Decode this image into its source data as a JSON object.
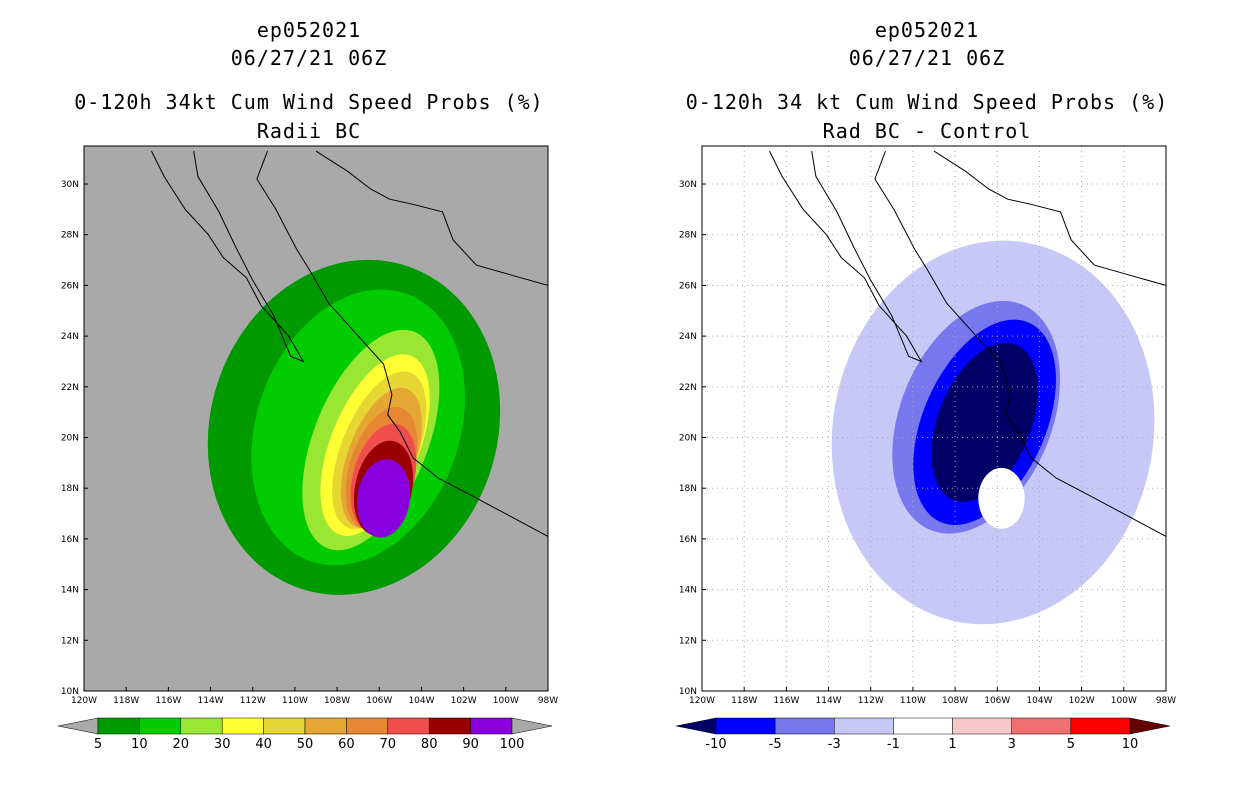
{
  "panels": [
    {
      "storm_id": "ep052021",
      "datetime": "06/27/21 06Z",
      "title": "0-120h 34kt Cum Wind Speed Probs (%)",
      "subtitle": "Radii BC",
      "background": "#a9a9a9",
      "x_ticks": [
        "120W",
        "118W",
        "116W",
        "114W",
        "112W",
        "110W",
        "108W",
        "106W",
        "104W",
        "102W",
        "100W",
        "98W"
      ],
      "y_ticks": [
        "10N",
        "12N",
        "14N",
        "16N",
        "18N",
        "20N",
        "22N",
        "24N",
        "26N",
        "28N",
        "30N"
      ],
      "colorbar": {
        "colors": [
          "#009900",
          "#00cc00",
          "#99e633",
          "#ffff33",
          "#e6d633",
          "#e6a633",
          "#e68833",
          "#f04d4d",
          "#990000",
          "#8800dd"
        ],
        "labels": [
          "5",
          "10",
          "20",
          "30",
          "40",
          "50",
          "60",
          "70",
          "80",
          "90",
          "100"
        ],
        "low_arrow": "#a9a9a9",
        "high_arrow": "#a9a9a9"
      }
    },
    {
      "storm_id": "ep052021",
      "datetime": "06/27/21 06Z",
      "title": "0-120h 34 kt Cum Wind Speed Probs (%)",
      "subtitle": "Rad BC - Control",
      "background": "#ffffff",
      "x_ticks": [
        "120W",
        "118W",
        "116W",
        "114W",
        "112W",
        "110W",
        "108W",
        "106W",
        "104W",
        "102W",
        "100W",
        "98W"
      ],
      "y_ticks": [
        "10N",
        "12N",
        "14N",
        "16N",
        "18N",
        "20N",
        "22N",
        "24N",
        "26N",
        "28N",
        "30N"
      ],
      "colorbar": {
        "colors": [
          "#0000ff",
          "#7777ee",
          "#c8c8f8",
          "#ffffff",
          "#f8c8c8",
          "#f07070",
          "#ff0000"
        ],
        "labels": [
          "-10",
          "-5",
          "-3",
          "-1",
          "1",
          "3",
          "5",
          "10"
        ],
        "low_arrow": "#000066",
        "high_arrow": "#660000"
      }
    }
  ],
  "chart_data": [
    {
      "type": "heatmap",
      "title": "0-120h 34kt Cum Wind Speed Probs (%)",
      "subtitle": "Radii BC",
      "xlim": [
        -120,
        -98
      ],
      "ylim": [
        10,
        31.5
      ],
      "levels": [
        5,
        10,
        20,
        30,
        40,
        50,
        60,
        70,
        80,
        90,
        100
      ],
      "contours": [
        {
          "level": 5,
          "color": "#009900",
          "center": [
            -107.2,
            20.4
          ],
          "rx": 6.8,
          "ry": 6.7,
          "rot": 18
        },
        {
          "level": 10,
          "color": "#00cc00",
          "center": [
            -107.0,
            20.4
          ],
          "rx": 4.8,
          "ry": 5.6,
          "rot": 20
        },
        {
          "level": 20,
          "color": "#99e633",
          "center": [
            -106.4,
            19.9
          ],
          "rx": 2.7,
          "ry": 4.6,
          "rot": 22
        },
        {
          "level": 30,
          "color": "#ffff33",
          "center": [
            -106.2,
            19.7
          ],
          "rx": 2.1,
          "ry": 3.8,
          "rot": 22
        },
        {
          "level": 40,
          "color": "#e6d633",
          "center": [
            -106.0,
            19.5
          ],
          "rx": 1.8,
          "ry": 3.3,
          "rot": 22
        },
        {
          "level": 50,
          "color": "#e6a633",
          "center": [
            -105.9,
            19.2
          ],
          "rx": 1.6,
          "ry": 2.9,
          "rot": 20
        },
        {
          "level": 60,
          "color": "#e68833",
          "center": [
            -105.9,
            18.8
          ],
          "rx": 1.5,
          "ry": 2.5,
          "rot": 18
        },
        {
          "level": 70,
          "color": "#f04d4d",
          "center": [
            -105.8,
            18.4
          ],
          "rx": 1.45,
          "ry": 2.2,
          "rot": 15
        },
        {
          "level": 80,
          "color": "#990000",
          "center": [
            -105.8,
            18.0
          ],
          "rx": 1.35,
          "ry": 1.9,
          "rot": 12
        },
        {
          "level": 90,
          "color": "#8800dd",
          "center": [
            -105.8,
            17.6
          ],
          "rx": 1.25,
          "ry": 1.55,
          "rot": 8
        }
      ]
    },
    {
      "type": "heatmap",
      "title": "0-120h 34 kt Cum Wind Speed Probs (%)",
      "subtitle": "Rad BC - Control",
      "xlim": [
        -120,
        -98
      ],
      "ylim": [
        10,
        31.5
      ],
      "levels": [
        -10,
        -5,
        -3,
        -1,
        1,
        3,
        5,
        10
      ],
      "contours": [
        {
          "level": -1,
          "color": "#c8c8f8",
          "center": [
            -106.2,
            20.2
          ],
          "rx": 7.6,
          "ry": 7.6,
          "rot": 10
        },
        {
          "level": -3,
          "color": "#7777ee",
          "center": [
            -107.0,
            20.8
          ],
          "rx": 3.6,
          "ry": 4.8,
          "rot": 22
        },
        {
          "level": -5,
          "color": "#0000ff",
          "center": [
            -106.6,
            20.6
          ],
          "rx": 2.9,
          "ry": 4.3,
          "rot": 24
        },
        {
          "level": -10,
          "color": "#000066",
          "center": [
            -106.6,
            20.6
          ],
          "rx": 2.2,
          "ry": 3.3,
          "rot": 22
        },
        {
          "level": 0,
          "color": "#ffffff",
          "center": [
            -105.8,
            17.6
          ],
          "rx": 1.1,
          "ry": 1.2,
          "rot": 0
        }
      ]
    }
  ]
}
